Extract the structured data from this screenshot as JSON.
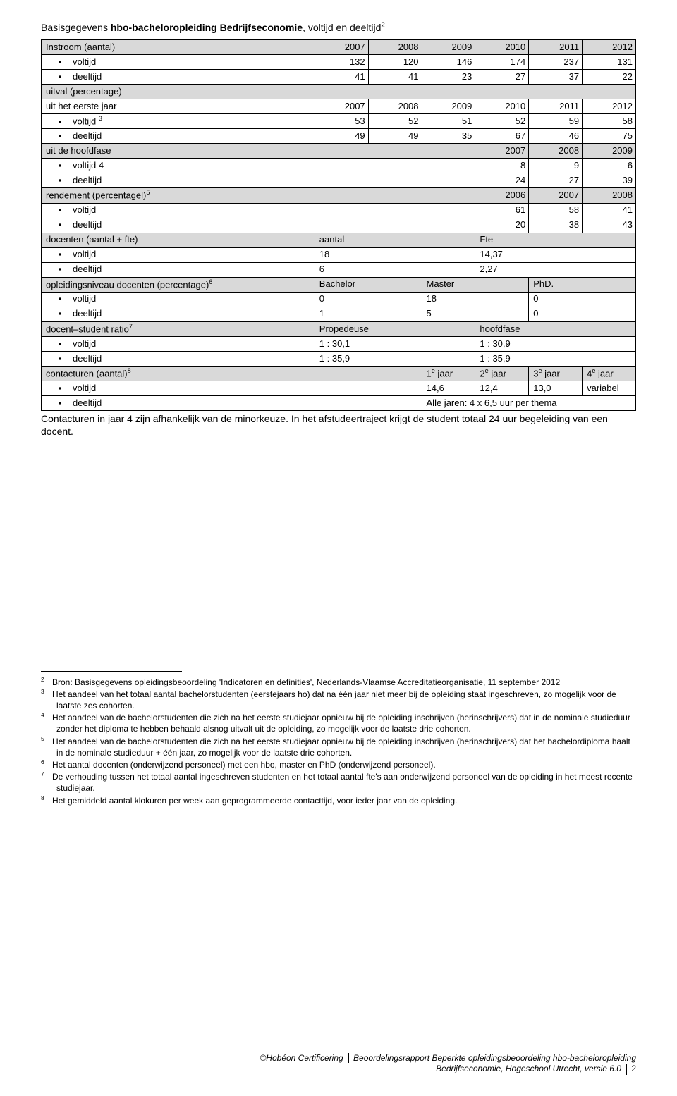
{
  "title": {
    "pre": "Basisgegevens ",
    "bold": "hbo-bacheloropleiding Bedrijfseconomie",
    "post": ", voltijd en deeltijd",
    "sup": "2"
  },
  "columns": {
    "label_w": "46%",
    "c1": "9%",
    "c2": "9%",
    "c3": "9%",
    "c4": "9%",
    "c5": "9%",
    "c6": "9%"
  },
  "rows": [
    {
      "type": "header6",
      "label": "Instroom (aantal)",
      "vals": [
        "2007",
        "2008",
        "2009",
        "2010",
        "2011",
        "2012"
      ]
    },
    {
      "type": "bullet6",
      "label": "voltijd",
      "vals": [
        "132",
        "120",
        "146",
        "174",
        "237",
        "131"
      ]
    },
    {
      "type": "bullet6",
      "label": "deeltijd",
      "vals": [
        "41",
        "41",
        "23",
        "27",
        "37",
        "22"
      ]
    },
    {
      "type": "header_span_nodata",
      "label": "uitval (percentage)"
    },
    {
      "type": "plain6",
      "label": "uit het eerste jaar",
      "vals": [
        "2007",
        "2008",
        "2009",
        "2010",
        "2011",
        "2012"
      ]
    },
    {
      "type": "bullet6_sup",
      "label": "voltijd",
      "sup": "3",
      "vals": [
        "53",
        "52",
        "51",
        "52",
        "59",
        "58"
      ]
    },
    {
      "type": "bullet6",
      "label": "deeltijd",
      "vals": [
        "49",
        "49",
        "35",
        "67",
        "46",
        "75"
      ]
    },
    {
      "type": "header3_lead",
      "label": "uit de hoofdfase",
      "lead": 3,
      "vals": [
        "2007",
        "2008",
        "2009"
      ]
    },
    {
      "type": "bullet3_lead",
      "label": "voltijd 4",
      "lead": 3,
      "vals": [
        "8",
        "9",
        "6"
      ]
    },
    {
      "type": "bullet3_lead",
      "label": "deeltijd",
      "lead": 3,
      "vals": [
        "24",
        "27",
        "39"
      ]
    },
    {
      "type": "header3_lead_sup",
      "label": "rendement (percentagel)",
      "sup": "5",
      "lead": 3,
      "vals": [
        "2006",
        "2007",
        "2008"
      ]
    },
    {
      "type": "bullet3_lead",
      "label": "voltijd",
      "lead": 3,
      "vals": [
        "61",
        "58",
        "41"
      ]
    },
    {
      "type": "bullet3_lead",
      "label": "deeltijd",
      "lead": 3,
      "vals": [
        "20",
        "38",
        "43"
      ]
    },
    {
      "type": "header_2col",
      "label": "docenten (aantal + fte)",
      "c1": "aantal",
      "c2": "Fte"
    },
    {
      "type": "bullet_2col",
      "label": "voltijd",
      "c1": "18",
      "c2": "14,37"
    },
    {
      "type": "bullet_2col",
      "label": "deeltijd",
      "c1": "6",
      "c2": "2,27"
    },
    {
      "type": "header_3col_sup",
      "label": "opleidingsniveau docenten (percentage)",
      "sup": "6",
      "c1": "Bachelor",
      "c2": "Master",
      "c3": "PhD."
    },
    {
      "type": "bullet_3col",
      "label": "voltijd",
      "c1": "0",
      "c2": "18",
      "c3": "0"
    },
    {
      "type": "bullet_3col",
      "label": "deeltijd",
      "c1": "1",
      "c2": "5",
      "c3": "0"
    },
    {
      "type": "header_2col_sup",
      "label": "docent–student ratio",
      "sup": "7",
      "c1": "Propedeuse",
      "c2": "hoofdfase"
    },
    {
      "type": "bullet_2col",
      "label": "voltijd",
      "c1": "1 : 30,1",
      "c2": "1 : 30,9"
    },
    {
      "type": "bullet_2col",
      "label": "deeltijd",
      "c1": "1 : 35,9",
      "c2": "1 : 35,9"
    },
    {
      "type": "header_4col_sup_e",
      "label": "contacturen (aantal)",
      "sup": "8",
      "c": [
        "1",
        "2",
        "3",
        "4"
      ],
      "suffix": " jaar"
    },
    {
      "type": "bullet_4col",
      "label": "voltijd",
      "c": [
        "14,6",
        "12,4",
        "13,0",
        "variabel"
      ]
    },
    {
      "type": "bullet_merge",
      "label": "deeltijd",
      "merged": "Alle jaren: 4 x 6,5 uur per thema"
    }
  ],
  "para": "Contacturen in jaar 4 zijn afhankelijk van de minorkeuze. In het afstudeertraject krijgt de student totaal 24 uur begeleiding van een docent.",
  "footnotes": [
    {
      "n": "2",
      "t": "Bron: Basisgegevens opleidingsbeoordeling 'Indicatoren en definities', Nederlands-Vlaamse Accreditatieorganisatie, 11 september 2012"
    },
    {
      "n": "3",
      "t": "Het aandeel van het totaal aantal bachelorstudenten (eerstejaars ho) dat na één jaar niet meer bij de opleiding staat ingeschreven, zo mogelijk voor de laatste zes cohorten."
    },
    {
      "n": "4",
      "t": "Het aandeel van de bachelorstudenten die zich na het eerste studiejaar opnieuw bij de opleiding inschrijven (herinschrijvers) dat in de nominale studieduur zonder het diploma te hebben behaald alsnog uitvalt uit de opleiding, zo mogelijk voor de laatste drie cohorten."
    },
    {
      "n": "5",
      "t": "Het aandeel van de bachelorstudenten die zich na het eerste studiejaar opnieuw bij de opleiding inschrijven (herinschrijvers) dat het bachelordiploma haalt in de nominale studieduur + één jaar, zo mogelijk voor de laatste drie cohorten."
    },
    {
      "n": "6",
      "t": "Het aantal docenten (onderwijzend personeel) met een hbo, master en PhD (onderwijzend personeel)."
    },
    {
      "n": "7",
      "t": "De verhouding tussen het totaal aantal ingeschreven studenten en het totaal aantal fte's aan onderwijzend personeel van de opleiding in het meest recente studiejaar."
    },
    {
      "n": "8",
      "t": "Het gemiddeld aantal klokuren per week aan geprogrammeerde contacttijd, voor ieder jaar van de opleiding."
    }
  ],
  "footer": {
    "line1_pre": "©Hobéon Certificering ",
    "line1_main": "Beoordelingsrapport Beperkte opleidingsbeoordeling hbo-bacheloropleiding",
    "line2": "Bedrijfseconomie, Hogeschool Utrecht, versie 6.0",
    "page": "2"
  }
}
